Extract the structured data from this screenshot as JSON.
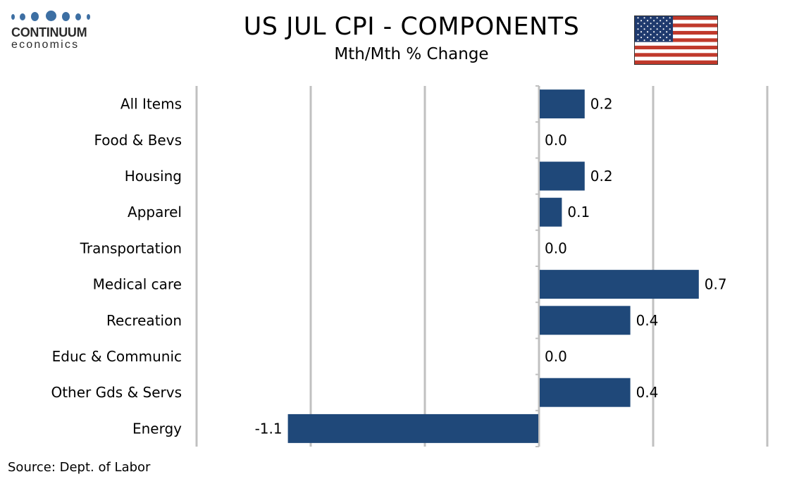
{
  "logo": {
    "main": "CONTINUUM",
    "sub": "economics",
    "color": "#3d6fa3"
  },
  "title": "US JUL CPI - COMPONENTS",
  "subtitle": "Mth/Mth % Change",
  "source": "Source: Dept. of Labor",
  "flag": {
    "country": "United States",
    "icon": "us-flag-icon"
  },
  "chart_data": {
    "type": "bar",
    "orientation": "horizontal",
    "title": "US JUL CPI - COMPONENTS",
    "subtitle": "Mth/Mth % Change",
    "categories": [
      "All Items",
      "Food & Bevs",
      "Housing",
      "Apparel",
      "Transportation",
      "Medical care",
      "Recreation",
      "Educ & Communic",
      "Other Gds & Servs",
      "Energy"
    ],
    "values": [
      0.2,
      0.0,
      0.2,
      0.1,
      0.0,
      0.7,
      0.4,
      0.0,
      0.4,
      -1.1
    ],
    "value_labels": [
      "0.2",
      "0.0",
      "0.2",
      "0.1",
      "0.0",
      "0.7",
      "0.4",
      "0.0",
      "0.4",
      "-1.1"
    ],
    "xlim": [
      -1.5,
      1.0
    ],
    "gridlines": [
      -1.5,
      -1.0,
      -0.5,
      0.0,
      0.5,
      1.0
    ],
    "grid": true,
    "bar_color": "#1f4879",
    "grid_color": "#c0c0c0",
    "legend": "none"
  }
}
